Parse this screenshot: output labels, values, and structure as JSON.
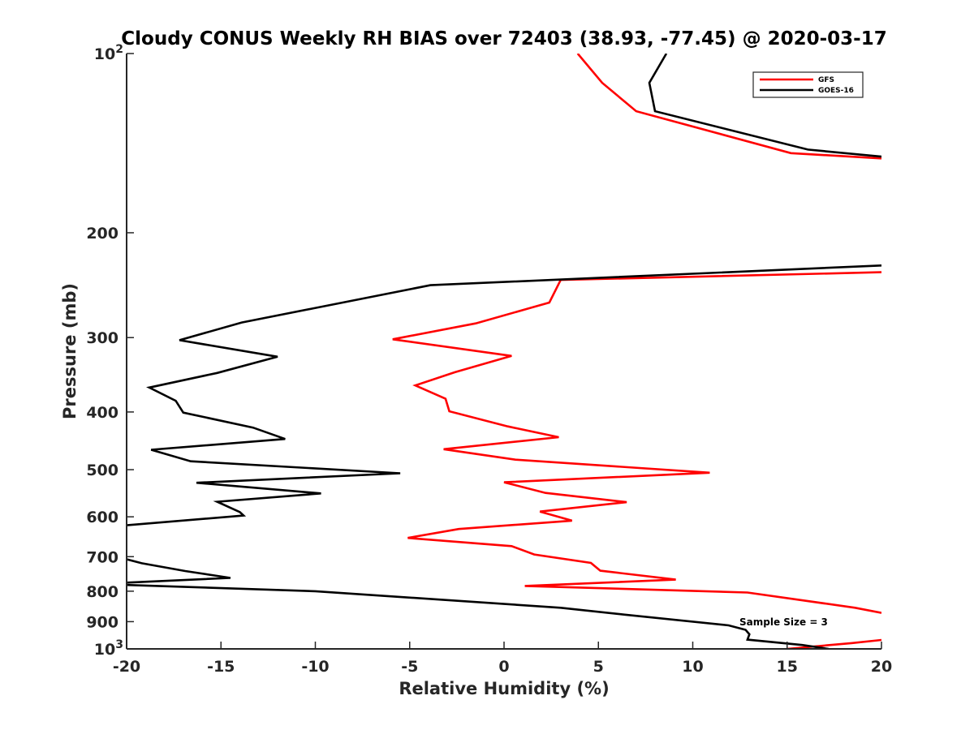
{
  "chart_data": {
    "type": "line",
    "title": "Cloudy CONUS Weekly RH BIAS over 72403 (38.93, -77.45) @ 2020-03-17",
    "xlabel": "Relative Humidity (%)",
    "ylabel": "Pressure (mb)",
    "xlim": [
      -20,
      20
    ],
    "ylim": [
      1000,
      100
    ],
    "y_scale": "log",
    "y_reversed": true,
    "grid": false,
    "legend_position": "top-right",
    "x_ticks": [
      "-20",
      "-15",
      "-10",
      "-5",
      "0",
      "5",
      "10",
      "15",
      "20"
    ],
    "y_ticks": [
      {
        "value": 100,
        "label": "10",
        "sup": "2"
      },
      {
        "value": 200,
        "label": "200"
      },
      {
        "value": 300,
        "label": "300"
      },
      {
        "value": 400,
        "label": "400"
      },
      {
        "value": 500,
        "label": "500"
      },
      {
        "value": 600,
        "label": "600"
      },
      {
        "value": 700,
        "label": "700"
      },
      {
        "value": 800,
        "label": "800"
      },
      {
        "value": 900,
        "label": "900"
      },
      {
        "value": 1000,
        "label": "10",
        "sup": "3"
      }
    ],
    "annotation": "Sample Size = 3",
    "series": [
      {
        "name": "GFS",
        "color": "#ff0000",
        "segments": [
          [
            [
              3.9,
              100
            ],
            [
              5.2,
              112
            ],
            [
              7.0,
              125
            ],
            [
              15.2,
              147
            ],
            [
              20,
              150
            ]
          ],
          [
            [
              20,
              233
            ],
            [
              3.0,
              240
            ],
            [
              2.4,
              262
            ],
            [
              -1.5,
              284
            ],
            [
              -5.9,
              302
            ],
            [
              0.4,
              322
            ],
            [
              -2.6,
              343
            ],
            [
              -4.7,
              361
            ],
            [
              -3.1,
              380
            ],
            [
              -2.9,
              399
            ],
            [
              0.2,
              423
            ],
            [
              2.9,
              441
            ],
            [
              -3.2,
              462
            ],
            [
              0.6,
              481
            ],
            [
              10.9,
              506
            ],
            [
              0.0,
              525
            ],
            [
              2.2,
              547
            ],
            [
              6.5,
              567
            ],
            [
              1.9,
              588
            ],
            [
              3.6,
              609
            ],
            [
              -2.4,
              629
            ],
            [
              -5.1,
              651
            ],
            [
              0.4,
              672
            ],
            [
              1.6,
              694
            ],
            [
              4.6,
              717
            ],
            [
              5.1,
              739
            ],
            [
              9.1,
              765
            ],
            [
              1.1,
              784
            ],
            [
              12.9,
              804
            ],
            [
              18.6,
              853
            ],
            [
              20,
              870
            ]
          ],
          [
            [
              20,
              966
            ],
            [
              18.4,
              978
            ],
            [
              15.0,
              1000
            ]
          ]
        ]
      },
      {
        "name": "GOES-16",
        "color": "#000000",
        "segments": [
          [
            [
              8.6,
              100
            ],
            [
              7.7,
              112
            ],
            [
              8.0,
              125
            ],
            [
              16.1,
              145
            ],
            [
              20,
              149
            ]
          ],
          [
            [
              20,
              227
            ],
            [
              -3.9,
              245
            ],
            [
              -13.9,
              283
            ],
            [
              -17.2,
              303
            ],
            [
              -12.0,
              323
            ],
            [
              -15.2,
              344
            ],
            [
              -18.8,
              364
            ],
            [
              -17.4,
              383
            ],
            [
              -17.0,
              401
            ],
            [
              -13.3,
              425
            ],
            [
              -11.6,
              444
            ],
            [
              -18.7,
              463
            ],
            [
              -16.6,
              484
            ],
            [
              -5.5,
              507
            ],
            [
              -16.3,
              526
            ],
            [
              -9.7,
              548
            ],
            [
              -15.2,
              566
            ],
            [
              -14.0,
              589
            ],
            [
              -13.8,
              597
            ],
            [
              -20,
              620
            ]
          ],
          [
            [
              -20,
              707
            ],
            [
              -19.2,
              718
            ],
            [
              -16.9,
              740
            ],
            [
              -14.5,
              760
            ],
            [
              -20,
              774
            ]
          ],
          [
            [
              -20,
              781
            ],
            [
              -10.0,
              800
            ],
            [
              3.0,
              853
            ],
            [
              6.4,
              876
            ],
            [
              11.9,
              913
            ],
            [
              12.8,
              929
            ],
            [
              13.0,
              945
            ],
            [
              12.9,
              965
            ],
            [
              15.8,
              985
            ],
            [
              17.2,
              1000
            ]
          ]
        ]
      }
    ]
  }
}
